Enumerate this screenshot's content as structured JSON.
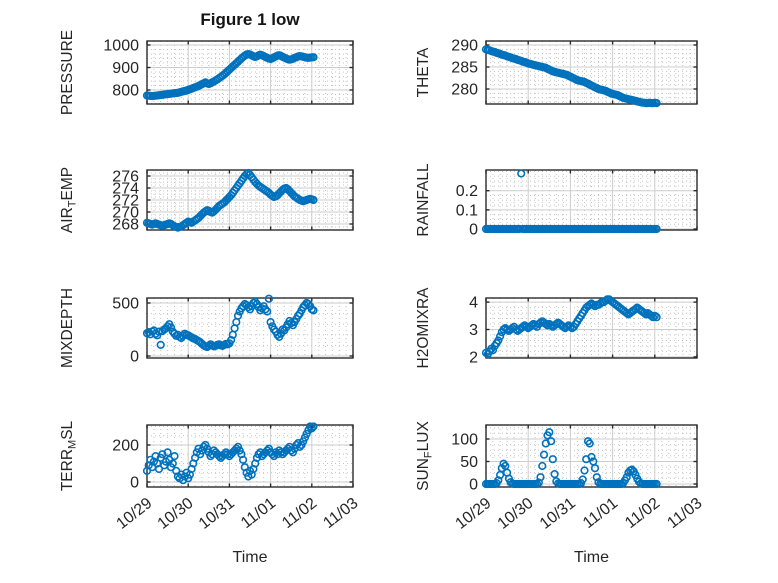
{
  "title": "Figure 1 low",
  "colors": {
    "marker": "#0072BD",
    "axis": "#2b2b2b",
    "text": "#262626",
    "major_grid": "#cdcdcd",
    "minor_grid": "#c4c4c4",
    "background": "#ffffff"
  },
  "chart_common": {
    "xlabel": "Time",
    "xlim_hours": [
      0,
      120
    ],
    "xticks_hours": [
      0,
      24,
      48,
      72,
      96,
      120
    ],
    "xtick_labels": [
      "10/29",
      "10/30",
      "10/31",
      "11/01",
      "11/02",
      "11/03"
    ],
    "xminor_step_hours": 4,
    "marker_shape": "circle",
    "grid": "on",
    "x_hours": [
      0,
      1,
      2,
      3,
      4,
      5,
      6,
      7,
      8,
      9,
      10,
      11,
      12,
      13,
      14,
      15,
      16,
      17,
      18,
      19,
      20,
      21,
      22,
      23,
      24,
      25,
      26,
      27,
      28,
      29,
      30,
      31,
      32,
      33,
      34,
      35,
      36,
      37,
      38,
      39,
      40,
      41,
      42,
      43,
      44,
      45,
      46,
      47,
      48,
      49,
      50,
      51,
      52,
      53,
      54,
      55,
      56,
      57,
      58,
      59,
      60,
      61,
      62,
      63,
      64,
      65,
      66,
      67,
      68,
      69,
      70,
      71,
      72,
      73,
      74,
      75,
      76,
      77,
      78,
      79,
      80,
      81,
      82,
      83,
      84,
      85,
      86,
      87,
      88,
      89,
      90,
      91,
      92,
      93,
      94,
      95,
      96,
      97
    ]
  },
  "chart_data": [
    {
      "type": "scatter",
      "name": "PRESSURE",
      "ylabel": "PRESSURE",
      "ylim": [
        738,
        1018
      ],
      "yticks": [
        800,
        900,
        1000
      ],
      "ytick_labels": [
        "800",
        "900",
        "1000"
      ],
      "yminor_step": 20,
      "values": [
        776,
        775,
        774,
        773,
        774,
        775,
        776,
        777,
        778,
        779,
        780,
        781,
        782,
        783,
        784,
        785,
        786,
        787,
        788,
        790,
        792,
        794,
        796,
        798,
        800,
        803,
        806,
        809,
        812,
        815,
        818,
        822,
        826,
        830,
        834,
        830,
        827,
        830,
        834,
        838,
        843,
        848,
        853,
        858,
        864,
        870,
        877,
        884,
        891,
        898,
        905,
        912,
        919,
        926,
        933,
        940,
        947,
        953,
        958,
        960,
        958,
        954,
        950,
        947,
        950,
        954,
        957,
        955,
        951,
        947,
        943,
        940,
        938,
        941,
        945,
        949,
        953,
        955,
        952,
        948,
        944,
        940,
        937,
        935,
        936,
        939,
        943,
        946,
        949,
        951,
        950,
        948,
        946,
        944,
        943,
        944,
        945,
        946
      ]
    },
    {
      "type": "scatter",
      "name": "THETA",
      "ylabel": "THETA",
      "ylim": [
        276.6,
        290.9
      ],
      "yticks": [
        280,
        285,
        290
      ],
      "ytick_labels": [
        "280",
        "285",
        "290"
      ],
      "yminor_step": 1,
      "values": [
        289.0,
        288.9,
        288.8,
        288.6,
        288.5,
        288.4,
        288.2,
        288.1,
        288.0,
        287.8,
        287.7,
        287.6,
        287.4,
        287.3,
        287.2,
        287.0,
        286.9,
        286.8,
        286.6,
        286.5,
        286.4,
        286.2,
        286.1,
        286.0,
        285.8,
        285.7,
        285.6,
        285.5,
        285.4,
        285.3,
        285.2,
        285.1,
        285.0,
        284.9,
        284.8,
        284.6,
        284.4,
        284.2,
        284.0,
        283.9,
        283.8,
        283.7,
        283.6,
        283.5,
        283.4,
        283.3,
        283.2,
        283.0,
        282.8,
        282.6,
        282.4,
        282.2,
        282.0,
        281.9,
        281.8,
        281.7,
        281.6,
        281.4,
        281.2,
        281.0,
        280.8,
        280.6,
        280.4,
        280.2,
        280.0,
        279.9,
        279.8,
        279.7,
        279.6,
        279.4,
        279.2,
        279.0,
        278.9,
        278.8,
        278.7,
        278.6,
        278.4,
        278.2,
        278.0,
        277.9,
        277.8,
        277.7,
        277.6,
        277.5,
        277.4,
        277.3,
        277.2,
        277.1,
        277.0,
        276.9,
        276.9,
        276.8,
        276.8,
        276.9,
        276.8,
        276.8,
        276.9,
        276.8
      ]
    },
    {
      "type": "scatter",
      "name": "AIR_TEMP",
      "ylabel": "AIR_TEMP",
      "ylim": [
        267.0,
        277.0
      ],
      "yticks": [
        268,
        270,
        272,
        274,
        276
      ],
      "ytick_labels": [
        "268",
        "270",
        "272",
        "274",
        "276"
      ],
      "yminor_step": 0.5,
      "values": [
        268.2,
        268.1,
        268.0,
        267.9,
        268.0,
        268.1,
        268.0,
        267.9,
        267.8,
        267.7,
        267.8,
        267.9,
        268.0,
        268.1,
        268.0,
        267.8,
        267.6,
        267.5,
        267.4,
        267.5,
        267.6,
        267.8,
        268.0,
        268.2,
        268.4,
        268.3,
        268.2,
        268.4,
        268.6,
        268.8,
        269.0,
        269.3,
        269.6,
        269.9,
        270.1,
        270.3,
        270.2,
        270.0,
        269.9,
        270.1,
        270.4,
        270.7,
        271.0,
        271.2,
        271.4,
        271.6,
        271.9,
        272.2,
        272.5,
        272.8,
        273.2,
        273.6,
        274.0,
        274.4,
        274.8,
        275.2,
        275.6,
        276.0,
        276.3,
        276.5,
        276.2,
        275.8,
        275.4,
        275.0,
        274.7,
        274.4,
        274.2,
        274.0,
        273.8,
        273.6,
        273.4,
        273.2,
        272.9,
        272.7,
        272.5,
        272.6,
        272.8,
        273.1,
        273.4,
        273.7,
        273.9,
        274.0,
        273.8,
        273.5,
        273.2,
        272.9,
        272.6,
        272.4,
        272.2,
        272.0,
        271.9,
        271.8,
        271.9,
        272.0,
        272.1,
        272.2,
        272.1,
        272.0
      ]
    },
    {
      "type": "scatter",
      "name": "RAINFALL",
      "ylabel": "RAINFALL",
      "ylim": [
        -0.005,
        0.308
      ],
      "yticks": [
        0,
        0.1,
        0.2
      ],
      "ytick_labels": [
        "0",
        "0.1",
        "0.2"
      ],
      "yminor_step": 0.025,
      "values": [
        0,
        0,
        0,
        0,
        0,
        0,
        0,
        0,
        0,
        0,
        0,
        0,
        0,
        0,
        0,
        0,
        0,
        0,
        0,
        0,
        0.29,
        0,
        0,
        0,
        0,
        0,
        0,
        0,
        0,
        0,
        0,
        0,
        0,
        0,
        0,
        0,
        0,
        0,
        0,
        0,
        0,
        0,
        0,
        0,
        0,
        0,
        0,
        0,
        0,
        0,
        0,
        0,
        0,
        0,
        0,
        0,
        0,
        0,
        0,
        0,
        0,
        0,
        0,
        0,
        0,
        0,
        0,
        0,
        0,
        0,
        0,
        0,
        0,
        0,
        0,
        0,
        0,
        0,
        0,
        0,
        0,
        0,
        0,
        0,
        0,
        0,
        0,
        0,
        0,
        0,
        0,
        0,
        0,
        0,
        0,
        0,
        0,
        0
      ]
    },
    {
      "type": "scatter",
      "name": "MIXDEPTH",
      "ylabel": "MIXDEPTH",
      "ylim": [
        -19,
        547
      ],
      "yticks": [
        0,
        500
      ],
      "ytick_labels": [
        "0",
        "500"
      ],
      "yminor_step": 100,
      "values": [
        215,
        225,
        205,
        230,
        240,
        210,
        195,
        230,
        105,
        235,
        250,
        260,
        280,
        300,
        270,
        230,
        210,
        190,
        200,
        180,
        170,
        190,
        210,
        200,
        195,
        185,
        175,
        165,
        160,
        150,
        140,
        130,
        115,
        100,
        90,
        85,
        95,
        110,
        100,
        90,
        95,
        105,
        110,
        100,
        95,
        105,
        115,
        110,
        120,
        150,
        200,
        260,
        320,
        380,
        420,
        450,
        470,
        490,
        480,
        460,
        440,
        470,
        500,
        510,
        490,
        460,
        430,
        450,
        470,
        440,
        420,
        540,
        320,
        280,
        250,
        230,
        200,
        180,
        210,
        250,
        240,
        270,
        300,
        330,
        310,
        290,
        320,
        350,
        380,
        400,
        430,
        460,
        480,
        500,
        490,
        470,
        440,
        430
      ]
    },
    {
      "type": "scatter",
      "name": "H2OMIXRA",
      "ylabel": "H2OMIXRA",
      "ylim": [
        1.96,
        4.15
      ],
      "yticks": [
        2,
        3,
        4
      ],
      "ytick_labels": [
        "2",
        "3",
        "4"
      ],
      "yminor_step": 0.2,
      "values": [
        2.15,
        2.1,
        2.2,
        2.3,
        2.25,
        2.4,
        2.5,
        2.6,
        2.75,
        2.9,
        3.0,
        3.05,
        3.0,
        2.95,
        3.0,
        3.05,
        3.1,
        3.0,
        2.95,
        3.0,
        3.05,
        3.1,
        3.15,
        3.1,
        3.05,
        3.1,
        3.15,
        3.2,
        3.15,
        3.1,
        3.2,
        3.25,
        3.3,
        3.25,
        3.2,
        3.15,
        3.2,
        3.15,
        3.1,
        3.15,
        3.2,
        3.25,
        3.2,
        3.15,
        3.1,
        3.05,
        3.1,
        3.15,
        3.1,
        3.05,
        3.1,
        3.2,
        3.3,
        3.4,
        3.5,
        3.6,
        3.7,
        3.8,
        3.85,
        3.9,
        3.95,
        3.9,
        3.85,
        3.9,
        3.9,
        3.95,
        4.0,
        4.0,
        4.05,
        4.1,
        4.1,
        4.05,
        4.0,
        3.95,
        3.9,
        3.85,
        3.8,
        3.75,
        3.7,
        3.65,
        3.6,
        3.55,
        3.6,
        3.65,
        3.7,
        3.75,
        3.8,
        3.75,
        3.7,
        3.65,
        3.6,
        3.55,
        3.6,
        3.55,
        3.5,
        3.45,
        3.5,
        3.45
      ]
    },
    {
      "type": "scatter",
      "name": "TERR_MSL",
      "ylabel": "TERR_MSL",
      "ylim": [
        -27,
        308
      ],
      "yticks": [
        0,
        200
      ],
      "ytick_labels": [
        "0",
        "200"
      ],
      "yminor_step": 50,
      "values": [
        60,
        90,
        120,
        80,
        110,
        140,
        100,
        70,
        130,
        150,
        90,
        110,
        160,
        120,
        80,
        100,
        140,
        60,
        30,
        20,
        40,
        10,
        30,
        50,
        20,
        40,
        70,
        100,
        130,
        160,
        180,
        150,
        170,
        190,
        200,
        180,
        160,
        140,
        150,
        170,
        160,
        150,
        140,
        130,
        140,
        150,
        160,
        150,
        140,
        150,
        160,
        170,
        180,
        190,
        170,
        150,
        120,
        80,
        50,
        30,
        60,
        40,
        70,
        100,
        130,
        150,
        160,
        140,
        150,
        160,
        170,
        180,
        160,
        150,
        140,
        160,
        150,
        170,
        160,
        150,
        160,
        170,
        180,
        190,
        170,
        160,
        180,
        200,
        210,
        190,
        200,
        220,
        240,
        260,
        280,
        300,
        290,
        300
      ]
    },
    {
      "type": "scatter",
      "name": "SUN_FLUX",
      "ylabel": "SUN_FLUX",
      "ylim": [
        -6.7,
        131
      ],
      "yticks": [
        0,
        50,
        100
      ],
      "ytick_labels": [
        "0",
        "50",
        "100"
      ],
      "yminor_step": 12.5,
      "values": [
        0,
        0,
        0,
        0,
        0,
        0,
        2,
        8,
        20,
        35,
        45,
        40,
        25,
        12,
        4,
        1,
        0,
        0,
        0,
        0,
        0,
        0,
        0,
        0,
        0,
        0,
        0,
        0,
        0,
        0,
        3,
        15,
        40,
        65,
        90,
        108,
        115,
        95,
        55,
        22,
        6,
        1,
        0,
        0,
        0,
        0,
        0,
        0,
        0,
        0,
        0,
        0,
        0,
        0,
        2,
        10,
        30,
        55,
        95,
        90,
        60,
        50,
        35,
        15,
        4,
        0,
        0,
        0,
        0,
        0,
        0,
        0,
        0,
        0,
        0,
        0,
        0,
        0,
        2,
        8,
        15,
        25,
        30,
        32,
        28,
        20,
        12,
        5,
        1,
        0,
        0,
        0,
        0,
        0,
        0,
        0,
        0,
        0
      ]
    }
  ]
}
